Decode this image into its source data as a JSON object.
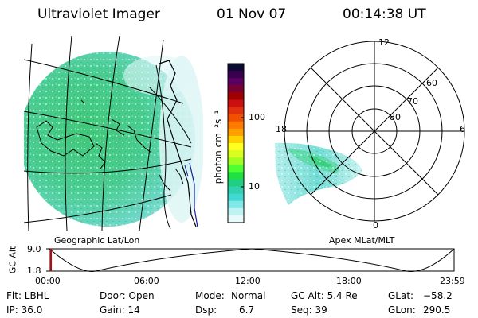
{
  "header": {
    "title": "Ultraviolet Imager",
    "date": "01 Nov 07",
    "time": "00:14:38 UT"
  },
  "colorbar": {
    "unit_label": "photon cm⁻²s⁻¹",
    "ticks": [
      "100",
      "10"
    ],
    "colors": [
      "#0b0b33",
      "#3a004f",
      "#5a0060",
      "#7a0030",
      "#a00000",
      "#cc1010",
      "#e03010",
      "#f05000",
      "#ff7a00",
      "#ffa000",
      "#ffd200",
      "#ffff20",
      "#d8ff20",
      "#a0ff20",
      "#50ff30",
      "#20e040",
      "#20d080",
      "#30d0b0",
      "#40d8d0",
      "#80e8e8",
      "#c0f2f2",
      "#e8fafa"
    ]
  },
  "map_panel": {
    "label": "Geographic Lat/Lon"
  },
  "polar_panel": {
    "label": "Apex MLat/MLT",
    "mlt_labels": {
      "top": "12",
      "left": "18",
      "right": "6",
      "bottom": "0"
    },
    "lat_labels": [
      "60",
      "70",
      "80"
    ]
  },
  "altitude_plot": {
    "ylabel": "GC Alt",
    "ytick_top": "9.0",
    "ytick_bottom": "1.8",
    "time_ticks": [
      "00:00",
      "06:00",
      "12:00",
      "18:00",
      "23:59"
    ]
  },
  "info": {
    "filter": "Flt: LBHL",
    "door": "Door: Open",
    "mode_label": "Mode:",
    "mode_value": "Normal",
    "gc_alt": "GC Alt: 5.4 Re",
    "glat_label": "GLat:",
    "glat_value": "−58.2",
    "ip": "IP: 36.0",
    "gain": "Gain: 14",
    "dsp_label": "Dsp:",
    "dsp_value": "6.7",
    "seq": "Seq: 39",
    "glon_label": "GLon:",
    "glon_value": "290.5"
  }
}
